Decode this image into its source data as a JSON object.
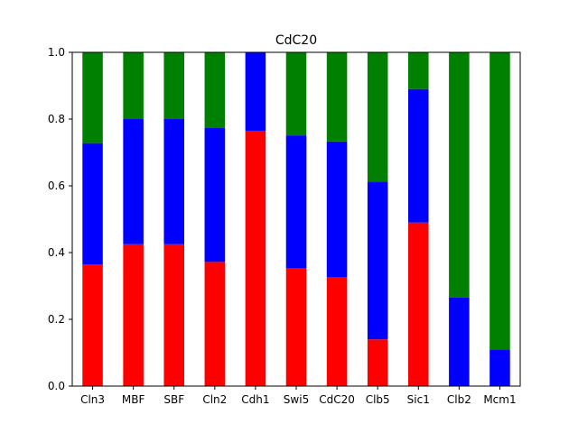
{
  "chart_data": {
    "type": "bar",
    "stacked": true,
    "title": "CdC20",
    "xlabel": "",
    "ylabel": "",
    "ylim": [
      0,
      1.0
    ],
    "yticks": [
      "0.0",
      "0.2",
      "0.4",
      "0.6",
      "0.8",
      "1.0"
    ],
    "grid": false,
    "legend": "none",
    "categories": [
      "Cln3",
      "MBF",
      "SBF",
      "Cln2",
      "Cdh1",
      "Swi5",
      "CdC20",
      "Clb5",
      "Sic1",
      "Clb2",
      "Mcm1"
    ],
    "series": [
      {
        "color": "#ff0000",
        "values": [
          0.364,
          0.425,
          0.425,
          0.372,
          0.765,
          0.353,
          0.326,
          0.14,
          0.49,
          0.0,
          0.0
        ]
      },
      {
        "color": "#0000ff",
        "values": [
          0.364,
          0.375,
          0.375,
          0.401,
          0.235,
          0.398,
          0.407,
          0.473,
          0.4,
          0.265,
          0.11
        ]
      },
      {
        "color": "#008000",
        "values": [
          0.272,
          0.2,
          0.2,
          0.227,
          0.0,
          0.249,
          0.267,
          0.387,
          0.11,
          0.735,
          0.89
        ]
      }
    ]
  }
}
